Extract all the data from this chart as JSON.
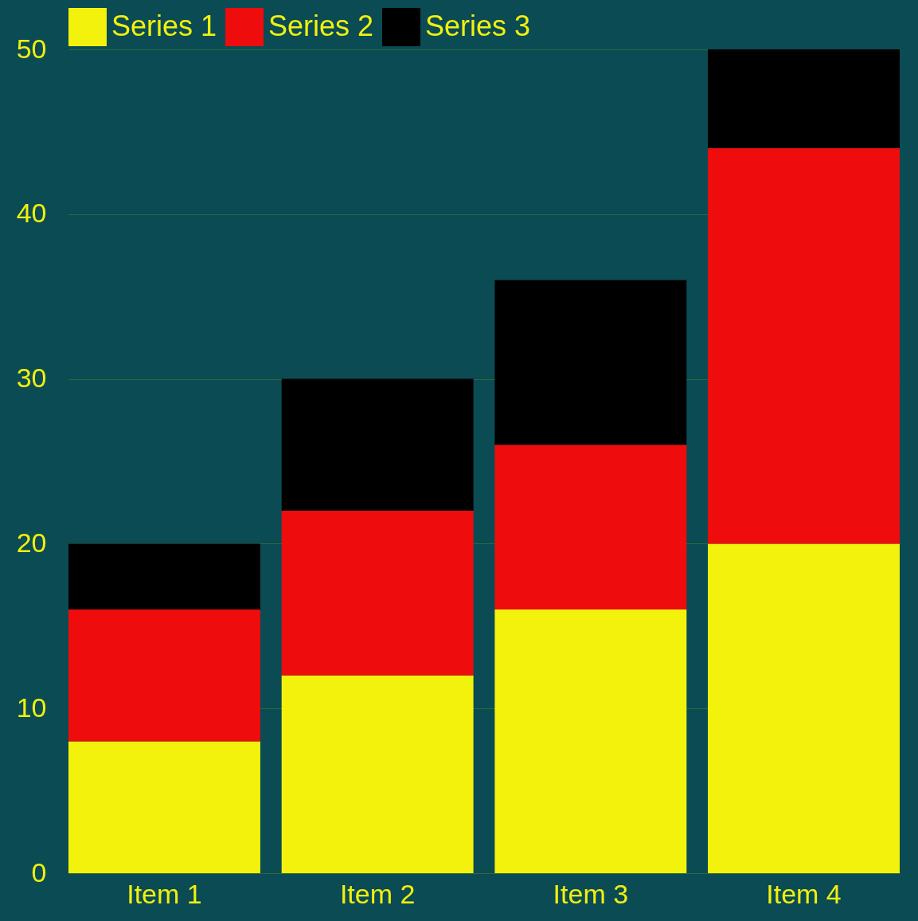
{
  "chart_data": {
    "type": "bar",
    "stacked": true,
    "categories": [
      "Item 1",
      "Item 2",
      "Item 3",
      "Item 4"
    ],
    "series": [
      {
        "name": "Series 1",
        "color": "#f2f20c",
        "values": [
          8,
          12,
          16,
          20
        ]
      },
      {
        "name": "Series 2",
        "color": "#ee0c0c",
        "values": [
          8,
          10,
          10,
          24
        ]
      },
      {
        "name": "Series 3",
        "color": "#000000",
        "values": [
          4,
          8,
          10,
          6
        ]
      }
    ],
    "ylim": [
      0,
      50
    ],
    "yticks": [
      0,
      10,
      20,
      30,
      40,
      50
    ],
    "grid": "y",
    "legend": "top"
  }
}
